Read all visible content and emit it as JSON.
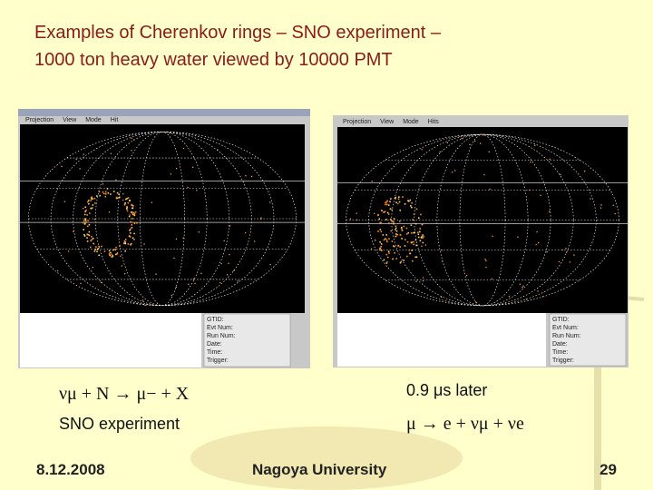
{
  "title": {
    "line1": "Examples of Cherenkov rings – SNO experiment –",
    "line2": "1000 ton heavy water viewed by 10000 PMT"
  },
  "left_screenshot": {
    "menu": [
      "Projection",
      "View",
      "Mode",
      "Hit"
    ],
    "info_labels": [
      "GTID:",
      "Evt Num:",
      "Run Num:",
      "Date:",
      "Time:",
      "Trigger:"
    ]
  },
  "right_screenshot": {
    "menu": [
      "Projection",
      "View",
      "Mode",
      "Hits"
    ],
    "info_labels": [
      "GTID:",
      "Evt Num:",
      "Run Num:",
      "Date:",
      "Time:",
      "Trigger:"
    ]
  },
  "left_caption": {
    "reaction": "νμ + N → μ− + X",
    "note": "SNO experiment"
  },
  "right_caption": {
    "timing": "0.9 μs later",
    "reaction": "μ → e + νμ + νe"
  },
  "footer": {
    "date": "8.12.2008",
    "institution": "Nagoya University",
    "page": "29"
  }
}
